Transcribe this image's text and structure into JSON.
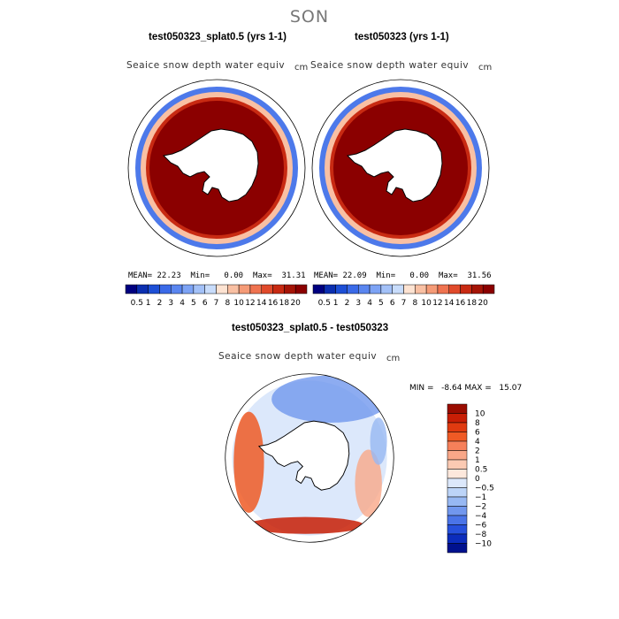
{
  "figure": {
    "season": "SON"
  },
  "chart_data": [
    {
      "type": "heatmap",
      "title": "test050323_splat0.5 (yrs 1-1)",
      "variable_label": "Seaice snow depth water equiv",
      "units": "cm",
      "stats": {
        "mean_label": "MEAN=",
        "mean": "22.23",
        "min_label": "Min=",
        "min": "0.00",
        "max_label": "Max=",
        "max": "31.31"
      },
      "colorbar": {
        "levels": [
          "0.5",
          "1",
          "2",
          "3",
          "4",
          "5",
          "6",
          "7",
          "8",
          "10",
          "12",
          "14",
          "16",
          "18",
          "20"
        ],
        "colors": [
          "#000080",
          "#0b2fb0",
          "#1d4fd6",
          "#3a6ae8",
          "#5a86f0",
          "#7da3f5",
          "#a3c1f8",
          "#c8dcfb",
          "#fde3d2",
          "#f9c0a3",
          "#f59b77",
          "#ef7350",
          "#e04a2b",
          "#c82a12",
          "#a51406",
          "#8b0000"
        ]
      }
    },
    {
      "type": "heatmap",
      "title": "test050323 (yrs 1-1)",
      "variable_label": "Seaice snow depth water equiv",
      "units": "cm",
      "stats": {
        "mean_label": "MEAN=",
        "mean": "22.09",
        "min_label": "Min=",
        "min": "0.00",
        "max_label": "Max=",
        "max": "31.56"
      },
      "colorbar": {
        "levels": [
          "0.5",
          "1",
          "2",
          "3",
          "4",
          "5",
          "6",
          "7",
          "8",
          "10",
          "12",
          "14",
          "16",
          "18",
          "20"
        ],
        "colors": [
          "#000080",
          "#0b2fb0",
          "#1d4fd6",
          "#3a6ae8",
          "#5a86f0",
          "#7da3f5",
          "#a3c1f8",
          "#c8dcfb",
          "#fde3d2",
          "#f9c0a3",
          "#f59b77",
          "#ef7350",
          "#e04a2b",
          "#c82a12",
          "#a51406",
          "#8b0000"
        ]
      }
    },
    {
      "type": "heatmap",
      "title": "test050323_splat0.5 - test050323",
      "variable_label": "Seaice snow depth water equiv",
      "units": "cm",
      "stats": {
        "min_label": "MIN =",
        "min": "-8.64",
        "max_label": "MAX =",
        "max": "15.07"
      },
      "colorbar": {
        "levels": [
          "10",
          "8",
          "6",
          "4",
          "2",
          "1",
          "0.5",
          "0",
          "−0.5",
          "−1",
          "−2",
          "−4",
          "−6",
          "−8",
          "−10"
        ],
        "colors": [
          "#9a0c00",
          "#c81e05",
          "#e03a10",
          "#ef5a25",
          "#f6805a",
          "#f9a788",
          "#fbcab3",
          "#fde8dc",
          "#dce8fb",
          "#bcd4f8",
          "#97b8f3",
          "#7197ee",
          "#4a74e8",
          "#2650dc",
          "#0b2cbc",
          "#00118e"
        ]
      }
    }
  ]
}
